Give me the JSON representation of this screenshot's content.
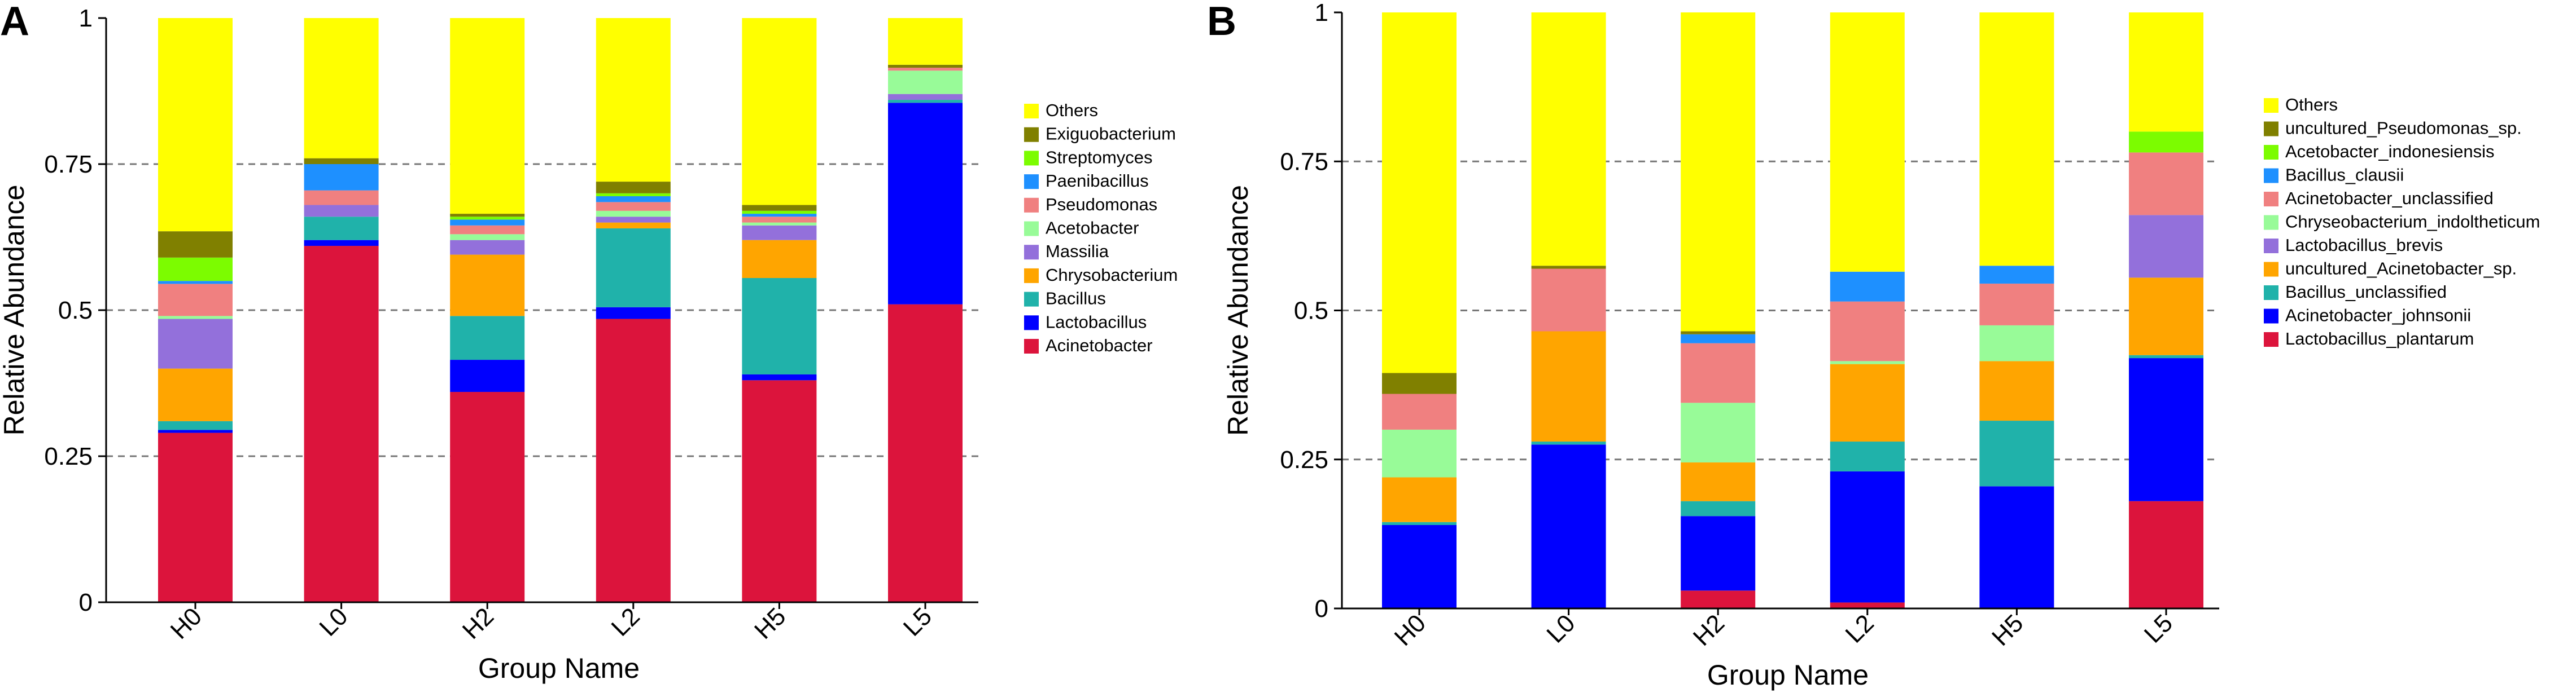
{
  "chart_data": [
    {
      "panel": "A",
      "type": "bar",
      "stacked": true,
      "title": "",
      "xlabel": "Group Name",
      "ylabel": "Relative Abundance",
      "ylim": [
        0,
        1
      ],
      "yticks": [
        "0",
        "0.25",
        "0.5",
        "0.75",
        "1"
      ],
      "ytick_values": [
        0,
        0.25,
        0.5,
        0.75,
        1
      ],
      "gridlines": [
        0.25,
        0.5,
        0.75
      ],
      "legend_position": "right",
      "categories": [
        "H0",
        "L0",
        "H2",
        "L2",
        "H5",
        "L5"
      ],
      "series": [
        {
          "name": "Acinetobacter",
          "color": "#DC143C",
          "values": [
            0.29,
            0.61,
            0.36,
            0.485,
            0.38,
            0.51
          ]
        },
        {
          "name": "Lactobacillus",
          "color": "#0000FF",
          "values": [
            0.005,
            0.01,
            0.055,
            0.02,
            0.01,
            0.345
          ]
        },
        {
          "name": "Bacillus",
          "color": "#20B2AA",
          "values": [
            0.015,
            0.04,
            0.075,
            0.135,
            0.165,
            0.005
          ]
        },
        {
          "name": "Chrysobacterium",
          "color": "#FFA500",
          "values": [
            0.09,
            0.0,
            0.105,
            0.01,
            0.065,
            0.0
          ]
        },
        {
          "name": "Massilia",
          "color": "#9370DB",
          "values": [
            0.085,
            0.02,
            0.025,
            0.01,
            0.025,
            0.01
          ]
        },
        {
          "name": "Acetobacter",
          "color": "#98FB98",
          "values": [
            0.005,
            0.0,
            0.01,
            0.01,
            0.005,
            0.04
          ]
        },
        {
          "name": "Pseudomonas",
          "color": "#F08080",
          "values": [
            0.055,
            0.025,
            0.015,
            0.015,
            0.01,
            0.005
          ]
        },
        {
          "name": "Paenibacillus",
          "color": "#1E90FF",
          "values": [
            0.005,
            0.045,
            0.01,
            0.01,
            0.005,
            0.0
          ]
        },
        {
          "name": "Streptomyces",
          "color": "#7CFC00",
          "values": [
            0.04,
            0.0,
            0.005,
            0.005,
            0.005,
            0.0
          ]
        },
        {
          "name": "Exiguobacterium",
          "color": "#808000",
          "values": [
            0.045,
            0.01,
            0.005,
            0.02,
            0.01,
            0.005
          ]
        },
        {
          "name": "Others",
          "color": "#FFFF00",
          "values": [
            0.365,
            0.24,
            0.335,
            0.28,
            0.32,
            0.08
          ]
        }
      ]
    },
    {
      "panel": "B",
      "type": "bar",
      "stacked": true,
      "title": "",
      "xlabel": "Group Name",
      "ylabel": "Relative Abundance",
      "ylim": [
        0,
        1
      ],
      "yticks": [
        "0",
        "0.25",
        "0.5",
        "0.75",
        "1"
      ],
      "ytick_values": [
        0,
        0.25,
        0.5,
        0.75,
        1
      ],
      "gridlines": [
        0.25,
        0.5,
        0.75
      ],
      "legend_position": "right",
      "categories": [
        "H0",
        "L0",
        "H2",
        "L2",
        "H5",
        "L5"
      ],
      "series": [
        {
          "name": "Lactobacillus_plantarum",
          "color": "#DC143C",
          "values": [
            0.0,
            0.0,
            0.03,
            0.01,
            0.0,
            0.18
          ]
        },
        {
          "name": "Acinetobacter_johnsonii",
          "color": "#0000FF",
          "values": [
            0.14,
            0.275,
            0.125,
            0.22,
            0.205,
            0.24
          ]
        },
        {
          "name": "Bacillus_unclassified",
          "color": "#20B2AA",
          "values": [
            0.005,
            0.005,
            0.025,
            0.05,
            0.11,
            0.005
          ]
        },
        {
          "name": "uncultured_Acinetobacter_sp.",
          "color": "#FFA500",
          "values": [
            0.075,
            0.185,
            0.065,
            0.13,
            0.1,
            0.13
          ]
        },
        {
          "name": "Lactobacillus_brevis",
          "color": "#9370DB",
          "values": [
            0.0,
            0.0,
            0.0,
            0.0,
            0.0,
            0.105
          ]
        },
        {
          "name": "Chryseobacterium_indoltheticum",
          "color": "#98FB98",
          "values": [
            0.08,
            0.0,
            0.1,
            0.005,
            0.06,
            0.0
          ]
        },
        {
          "name": "Acinetobacter_unclassified",
          "color": "#F08080",
          "values": [
            0.06,
            0.105,
            0.1,
            0.1,
            0.07,
            0.105
          ]
        },
        {
          "name": "Bacillus_clausii",
          "color": "#1E90FF",
          "values": [
            0.0,
            0.0,
            0.015,
            0.05,
            0.03,
            0.0
          ]
        },
        {
          "name": "Acetobacter_indonesiensis",
          "color": "#7CFC00",
          "values": [
            0.0,
            0.0,
            0.0,
            0.0,
            0.0,
            0.035
          ]
        },
        {
          "name": "uncultured_Pseudomonas_sp.",
          "color": "#808000",
          "values": [
            0.035,
            0.005,
            0.005,
            0.0,
            0.0,
            0.0
          ]
        },
        {
          "name": "Others",
          "color": "#FFFF00",
          "values": [
            0.605,
            0.425,
            0.535,
            0.435,
            0.425,
            0.2
          ]
        }
      ]
    }
  ]
}
